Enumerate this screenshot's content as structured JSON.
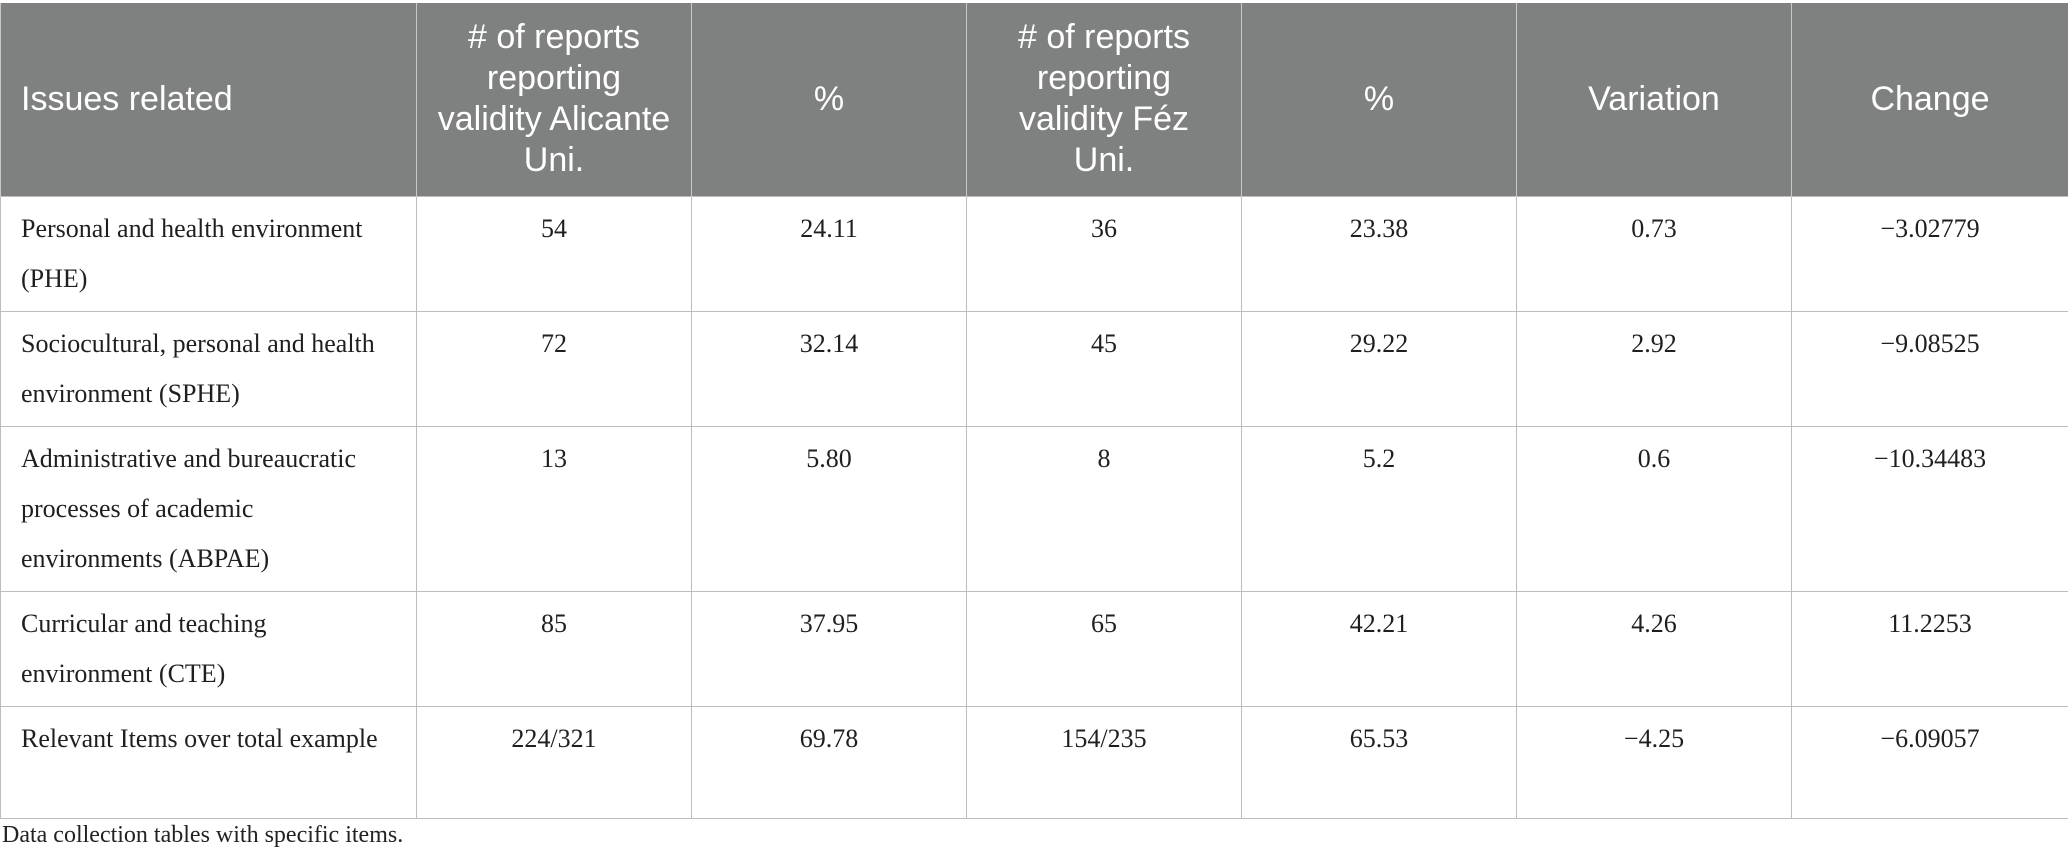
{
  "table": {
    "headers": [
      "Issues related",
      "# of reports reporting validity Alicante Uni.",
      "%",
      "# of reports reporting validity Féz Uni.",
      "%",
      "Variation",
      "Change"
    ],
    "rows": [
      [
        "Personal and health environment (PHE)",
        "54",
        "24.11",
        "36",
        "23.38",
        "0.73",
        "−3.02779"
      ],
      [
        "Sociocultural, personal and health environment (SPHE)",
        "72",
        "32.14",
        "45",
        "29.22",
        "2.92",
        "−9.08525"
      ],
      [
        "Administrative and bureaucratic processes of academic environments (ABPAE)",
        "13",
        "5.80",
        "8",
        "5.2",
        "0.6",
        "−10.34483"
      ],
      [
        "Curricular and teaching environment (CTE)",
        "85",
        "37.95",
        "65",
        "42.21",
        "4.26",
        "11.2253"
      ],
      [
        "Relevant Items over total example",
        "224/321",
        "69.78",
        "154/235",
        "65.53",
        "−4.25",
        "−6.09057"
      ]
    ]
  },
  "caption": "Data collection tables with specific items."
}
